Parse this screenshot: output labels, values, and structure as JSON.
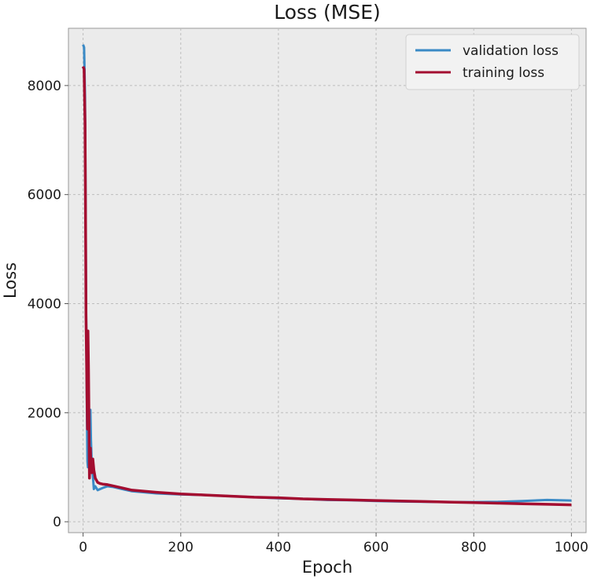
{
  "chart_data": {
    "type": "line",
    "title": "Loss (MSE)",
    "xlabel": "Epoch",
    "ylabel": "Loss",
    "xlim": [
      -30,
      1030
    ],
    "ylim": [
      -200,
      9050
    ],
    "xticks": [
      0,
      200,
      400,
      600,
      800,
      1000
    ],
    "yticks": [
      0,
      2000,
      4000,
      6000,
      8000
    ],
    "grid": true,
    "legend_position": "top-right",
    "series": [
      {
        "name": "validation loss",
        "color": "#3a8ac6",
        "x": [
          0,
          2,
          4,
          5,
          6,
          8,
          9,
          10,
          12,
          14,
          15,
          16,
          18,
          20,
          22,
          25,
          30,
          35,
          40,
          50,
          60,
          80,
          100,
          150,
          200,
          250,
          300,
          350,
          400,
          450,
          500,
          550,
          600,
          650,
          700,
          750,
          800,
          850,
          900,
          950,
          1000
        ],
        "y": [
          8750,
          8700,
          7800,
          6200,
          4200,
          1800,
          1100,
          1000,
          1050,
          1900,
          2050,
          1500,
          1000,
          850,
          600,
          650,
          580,
          600,
          620,
          650,
          640,
          600,
          560,
          520,
          500,
          490,
          470,
          450,
          430,
          420,
          400,
          395,
          380,
          370,
          365,
          360,
          360,
          365,
          380,
          400,
          390
        ]
      },
      {
        "name": "training loss",
        "color": "#a30d30",
        "x": [
          0,
          2,
          4,
          5,
          6,
          8,
          9,
          10,
          11,
          12,
          13,
          14,
          15,
          16,
          18,
          20,
          22,
          25,
          30,
          35,
          40,
          50,
          60,
          80,
          100,
          150,
          200,
          250,
          300,
          350,
          400,
          450,
          500,
          550,
          600,
          650,
          700,
          750,
          800,
          850,
          900,
          950,
          1000
        ],
        "y": [
          8350,
          8300,
          7300,
          5700,
          3800,
          2300,
          1700,
          3500,
          2800,
          1900,
          800,
          1100,
          1350,
          1000,
          900,
          1150,
          950,
          800,
          720,
          700,
          690,
          680,
          660,
          620,
          580,
          540,
          510,
          490,
          470,
          450,
          440,
          420,
          410,
          400,
          390,
          380,
          370,
          360,
          350,
          340,
          330,
          320,
          310
        ]
      }
    ]
  }
}
